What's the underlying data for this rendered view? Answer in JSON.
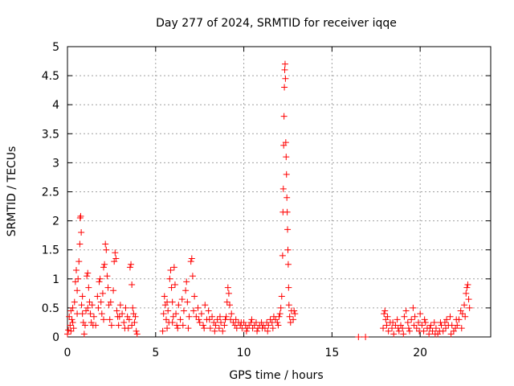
{
  "chart_data": {
    "type": "scatter",
    "title": "Day 277 of 2024, SRMTID for receiver iqqe",
    "xlabel": "GPS time / hours",
    "ylabel": "SRMTID / TECUs",
    "xlim": [
      0,
      24
    ],
    "ylim": [
      0,
      5
    ],
    "xticks": [
      0,
      5,
      10,
      15,
      20
    ],
    "xtick_labels": [
      "0",
      "5",
      "10",
      "15",
      "20"
    ],
    "yticks": [
      0,
      0.5,
      1,
      1.5,
      2,
      2.5,
      3,
      3.5,
      4,
      4.5,
      5
    ],
    "ytick_labels": [
      "0",
      "0.5",
      "1",
      "1.5",
      "2",
      "2.5",
      "3",
      "3.5",
      "4",
      "4.5",
      "5"
    ],
    "grid": true,
    "marker": "+",
    "marker_color": "#ff0000",
    "series": [
      {
        "name": "SRMTID",
        "points": [
          [
            0.0,
            0.05
          ],
          [
            0.05,
            0.12
          ],
          [
            0.1,
            0.35
          ],
          [
            0.15,
            0.2
          ],
          [
            0.2,
            0.45
          ],
          [
            0.25,
            0.3
          ],
          [
            0.3,
            0.5
          ],
          [
            0.35,
            0.15
          ],
          [
            0.4,
            0.6
          ],
          [
            0.45,
            0.95
          ],
          [
            0.5,
            1.15
          ],
          [
            0.55,
            0.8
          ],
          [
            0.6,
            1.0
          ],
          [
            0.65,
            1.3
          ],
          [
            0.7,
            1.6
          ],
          [
            0.72,
            2.05
          ],
          [
            0.75,
            2.08
          ],
          [
            0.78,
            1.8
          ],
          [
            0.8,
            0.55
          ],
          [
            0.85,
            0.4
          ],
          [
            0.9,
            0.25
          ],
          [
            0.95,
            0.05
          ],
          [
            1.0,
            0.2
          ],
          [
            1.05,
            0.45
          ],
          [
            1.1,
            1.05
          ],
          [
            1.15,
            1.1
          ],
          [
            1.2,
            0.85
          ],
          [
            1.25,
            0.6
          ],
          [
            1.3,
            0.4
          ],
          [
            1.35,
            0.25
          ],
          [
            1.4,
            0.55
          ],
          [
            1.5,
            0.35
          ],
          [
            1.6,
            0.2
          ],
          [
            1.7,
            0.7
          ],
          [
            1.8,
            0.95
          ],
          [
            1.85,
            1.0
          ],
          [
            1.9,
            0.6
          ],
          [
            1.95,
            0.4
          ],
          [
            2.0,
            0.75
          ],
          [
            2.05,
            1.2
          ],
          [
            2.1,
            1.25
          ],
          [
            2.15,
            1.6
          ],
          [
            2.2,
            1.5
          ],
          [
            2.25,
            1.05
          ],
          [
            2.3,
            0.85
          ],
          [
            2.35,
            0.55
          ],
          [
            2.4,
            0.3
          ],
          [
            2.5,
            0.2
          ],
          [
            2.6,
            0.8
          ],
          [
            2.65,
            1.3
          ],
          [
            2.7,
            1.45
          ],
          [
            2.75,
            1.35
          ],
          [
            2.8,
            0.45
          ],
          [
            2.85,
            0.35
          ],
          [
            2.9,
            0.2
          ],
          [
            3.0,
            0.55
          ],
          [
            3.1,
            0.4
          ],
          [
            3.2,
            0.25
          ],
          [
            3.3,
            0.5
          ],
          [
            3.4,
            0.35
          ],
          [
            3.45,
            0.15
          ],
          [
            3.5,
            0.3
          ],
          [
            3.55,
            1.2
          ],
          [
            3.6,
            1.25
          ],
          [
            3.65,
            0.9
          ],
          [
            3.7,
            0.5
          ],
          [
            3.75,
            0.4
          ],
          [
            3.8,
            0.25
          ],
          [
            3.85,
            0.35
          ],
          [
            3.9,
            0.1
          ],
          [
            3.95,
            0.05
          ],
          [
            5.4,
            0.1
          ],
          [
            5.45,
            0.4
          ],
          [
            5.5,
            0.7
          ],
          [
            5.55,
            0.55
          ],
          [
            5.6,
            0.3
          ],
          [
            5.65,
            0.15
          ],
          [
            5.7,
            0.45
          ],
          [
            5.75,
            0.25
          ],
          [
            5.8,
            1.0
          ],
          [
            5.85,
            1.15
          ],
          [
            5.9,
            0.85
          ],
          [
            5.95,
            0.6
          ],
          [
            6.0,
            0.35
          ],
          [
            6.05,
            1.2
          ],
          [
            6.1,
            0.9
          ],
          [
            6.15,
            0.4
          ],
          [
            6.2,
            0.2
          ],
          [
            6.3,
            0.55
          ],
          [
            6.4,
            0.3
          ],
          [
            6.5,
            0.65
          ],
          [
            6.6,
            0.45
          ],
          [
            6.7,
            0.8
          ],
          [
            6.75,
            0.95
          ],
          [
            6.8,
            0.6
          ],
          [
            6.9,
            0.35
          ],
          [
            7.0,
            1.3
          ],
          [
            7.05,
            1.35
          ],
          [
            7.1,
            1.05
          ],
          [
            7.2,
            0.7
          ],
          [
            7.3,
            0.35
          ],
          [
            7.4,
            0.5
          ],
          [
            7.5,
            0.25
          ],
          [
            7.6,
            0.4
          ],
          [
            7.7,
            0.2
          ],
          [
            7.8,
            0.55
          ],
          [
            7.9,
            0.3
          ],
          [
            8.0,
            0.45
          ],
          [
            8.1,
            0.15
          ],
          [
            8.2,
            0.35
          ],
          [
            8.3,
            0.25
          ],
          [
            8.4,
            0.2
          ],
          [
            8.5,
            0.3
          ],
          [
            8.6,
            0.15
          ],
          [
            8.7,
            0.25
          ],
          [
            8.8,
            0.1
          ],
          [
            8.9,
            0.2
          ],
          [
            9.0,
            0.35
          ],
          [
            9.05,
            0.6
          ],
          [
            9.1,
            0.85
          ],
          [
            9.15,
            0.75
          ],
          [
            9.2,
            0.55
          ],
          [
            9.3,
            0.4
          ],
          [
            9.4,
            0.25
          ],
          [
            9.5,
            0.2
          ],
          [
            9.6,
            0.15
          ],
          [
            9.7,
            0.25
          ],
          [
            9.8,
            0.2
          ],
          [
            9.9,
            0.15
          ],
          [
            10.0,
            0.25
          ],
          [
            10.1,
            0.2
          ],
          [
            10.2,
            0.15
          ],
          [
            10.3,
            0.2
          ],
          [
            10.4,
            0.25
          ],
          [
            10.5,
            0.15
          ],
          [
            10.6,
            0.2
          ],
          [
            10.7,
            0.25
          ],
          [
            10.8,
            0.15
          ],
          [
            10.9,
            0.2
          ],
          [
            11.0,
            0.25
          ],
          [
            11.1,
            0.2
          ],
          [
            11.2,
            0.15
          ],
          [
            11.3,
            0.25
          ],
          [
            11.4,
            0.2
          ],
          [
            11.5,
            0.3
          ],
          [
            11.6,
            0.25
          ],
          [
            11.7,
            0.35
          ],
          [
            11.8,
            0.3
          ],
          [
            11.9,
            0.25
          ],
          [
            12.0,
            0.35
          ],
          [
            12.05,
            0.4
          ],
          [
            12.1,
            0.5
          ],
          [
            12.15,
            0.7
          ],
          [
            12.2,
            1.4
          ],
          [
            12.22,
            2.15
          ],
          [
            12.24,
            2.55
          ],
          [
            12.26,
            3.3
          ],
          [
            12.28,
            3.8
          ],
          [
            12.3,
            4.3
          ],
          [
            12.32,
            4.6
          ],
          [
            12.34,
            4.7
          ],
          [
            12.36,
            4.45
          ],
          [
            12.38,
            3.35
          ],
          [
            12.4,
            3.1
          ],
          [
            12.42,
            2.8
          ],
          [
            12.44,
            2.4
          ],
          [
            12.46,
            2.15
          ],
          [
            12.48,
            1.85
          ],
          [
            12.5,
            1.5
          ],
          [
            12.52,
            1.25
          ],
          [
            12.54,
            0.85
          ],
          [
            12.56,
            0.55
          ],
          [
            12.6,
            0.35
          ],
          [
            12.7,
            0.45
          ],
          [
            12.8,
            0.3
          ],
          [
            12.9,
            0.4
          ],
          [
            16.5,
            0.0
          ],
          [
            16.9,
            0.0
          ],
          [
            17.9,
            0.15
          ],
          [
            17.95,
            0.4
          ],
          [
            18.0,
            0.45
          ],
          [
            18.05,
            0.3
          ],
          [
            18.1,
            0.2
          ],
          [
            18.2,
            0.1
          ],
          [
            18.3,
            0.25
          ],
          [
            18.4,
            0.15
          ],
          [
            18.5,
            0.05
          ],
          [
            18.6,
            0.2
          ],
          [
            18.7,
            0.3
          ],
          [
            18.8,
            0.1
          ],
          [
            18.9,
            0.2
          ],
          [
            19.0,
            0.15
          ],
          [
            19.1,
            0.35
          ],
          [
            19.2,
            0.45
          ],
          [
            19.3,
            0.25
          ],
          [
            19.4,
            0.1
          ],
          [
            19.5,
            0.3
          ],
          [
            19.6,
            0.5
          ],
          [
            19.7,
            0.35
          ],
          [
            19.8,
            0.15
          ],
          [
            19.9,
            0.25
          ],
          [
            20.0,
            0.4
          ],
          [
            20.1,
            0.2
          ],
          [
            20.2,
            0.1
          ],
          [
            20.3,
            0.25
          ],
          [
            20.4,
            0.15
          ],
          [
            20.5,
            0.05
          ],
          [
            20.6,
            0.2
          ],
          [
            20.7,
            0.1
          ],
          [
            20.8,
            0.25
          ],
          [
            20.9,
            0.15
          ],
          [
            21.0,
            0.05
          ],
          [
            21.1,
            0.1
          ],
          [
            21.2,
            0.2
          ],
          [
            21.3,
            0.1
          ],
          [
            21.4,
            0.25
          ],
          [
            21.5,
            0.3
          ],
          [
            21.6,
            0.2
          ],
          [
            21.7,
            0.35
          ],
          [
            21.8,
            0.2
          ],
          [
            21.9,
            0.1
          ],
          [
            22.0,
            0.15
          ],
          [
            22.1,
            0.2
          ],
          [
            22.2,
            0.3
          ],
          [
            22.3,
            0.45
          ],
          [
            22.4,
            0.4
          ],
          [
            22.5,
            0.55
          ],
          [
            22.6,
            0.75
          ],
          [
            22.65,
            0.85
          ],
          [
            22.7,
            0.9
          ],
          [
            22.75,
            0.65
          ],
          [
            22.8,
            0.5
          ],
          [
            0.2,
            0.1
          ],
          [
            0.3,
            0.25
          ],
          [
            0.55,
            0.4
          ],
          [
            0.85,
            0.7
          ],
          [
            1.15,
            0.5
          ],
          [
            1.45,
            0.2
          ],
          [
            1.75,
            0.5
          ],
          [
            2.05,
            0.3
          ],
          [
            2.45,
            0.6
          ],
          [
            2.95,
            0.35
          ],
          [
            3.25,
            0.15
          ],
          [
            3.65,
            0.2
          ],
          [
            5.65,
            0.6
          ],
          [
            5.95,
            0.25
          ],
          [
            6.25,
            0.15
          ],
          [
            6.55,
            0.2
          ],
          [
            6.85,
            0.15
          ],
          [
            7.15,
            0.45
          ],
          [
            7.45,
            0.3
          ],
          [
            7.75,
            0.15
          ],
          [
            8.05,
            0.3
          ],
          [
            8.35,
            0.1
          ],
          [
            8.65,
            0.35
          ],
          [
            8.95,
            0.3
          ],
          [
            9.25,
            0.3
          ],
          [
            9.55,
            0.3
          ],
          [
            9.85,
            0.25
          ],
          [
            10.15,
            0.1
          ],
          [
            10.45,
            0.3
          ],
          [
            10.75,
            0.1
          ],
          [
            11.05,
            0.15
          ],
          [
            11.35,
            0.1
          ],
          [
            11.65,
            0.15
          ],
          [
            11.95,
            0.2
          ],
          [
            12.65,
            0.25
          ],
          [
            12.85,
            0.45
          ],
          [
            18.15,
            0.35
          ],
          [
            18.45,
            0.25
          ],
          [
            18.75,
            0.15
          ],
          [
            19.05,
            0.05
          ],
          [
            19.35,
            0.15
          ],
          [
            19.65,
            0.2
          ],
          [
            19.95,
            0.1
          ],
          [
            20.25,
            0.3
          ],
          [
            20.55,
            0.15
          ],
          [
            20.85,
            0.05
          ],
          [
            21.15,
            0.25
          ],
          [
            21.45,
            0.15
          ],
          [
            21.75,
            0.05
          ],
          [
            22.05,
            0.3
          ],
          [
            22.35,
            0.15
          ],
          [
            22.55,
            0.35
          ]
        ]
      }
    ]
  }
}
